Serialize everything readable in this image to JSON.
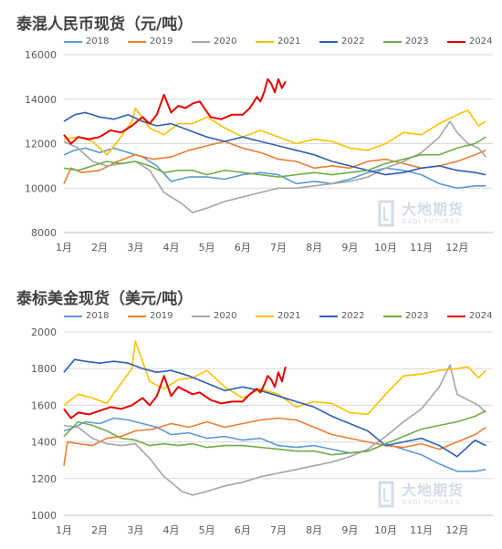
{
  "chart_data": [
    {
      "type": "line",
      "title": "泰混人民币现货（元/吨）",
      "categories": [
        "1月",
        "2月",
        "3月",
        "4月",
        "5月",
        "6月",
        "7月",
        "8月",
        "9月",
        "10月",
        "11月",
        "12月"
      ],
      "ylim": [
        8000,
        16000
      ],
      "yticks": [
        "8000",
        "10000",
        "12000",
        "14000",
        "16000"
      ],
      "grid": "horizontal",
      "legend": "top",
      "watermark": {
        "cn": "大地期货",
        "en": "DADI FUTURES"
      },
      "series": [
        {
          "name": "2018",
          "color": "#5b9bd5",
          "x": [
            0,
            0.3,
            0.6,
            1,
            1.4,
            1.8,
            2.2,
            2.6,
            3,
            3.5,
            4,
            4.5,
            5,
            5.5,
            6,
            6.5,
            7,
            7.5,
            8,
            8.5,
            9,
            9.5,
            10,
            10.5,
            11,
            11.5,
            11.8
          ],
          "values": [
            11500,
            11700,
            11800,
            11600,
            11800,
            11600,
            11400,
            11000,
            10300,
            10500,
            10500,
            10400,
            10600,
            10700,
            10600,
            10200,
            10300,
            10200,
            10400,
            10700,
            10900,
            10800,
            10600,
            10200,
            10000,
            10100,
            10100
          ]
        },
        {
          "name": "2019",
          "color": "#ed7d31",
          "x": [
            0,
            0.2,
            0.5,
            1,
            1.5,
            2,
            2.5,
            3,
            3.5,
            4,
            4.5,
            5,
            5.5,
            6,
            6.5,
            7,
            7.5,
            8,
            8.5,
            9,
            9.5,
            10,
            10.5,
            11,
            11.5,
            11.8
          ],
          "values": [
            10200,
            10900,
            10700,
            10800,
            11200,
            11500,
            11300,
            11400,
            11700,
            11900,
            12100,
            11800,
            11600,
            11300,
            11200,
            10900,
            11000,
            10900,
            11200,
            11300,
            11100,
            10900,
            11000,
            11200,
            11500,
            11700
          ]
        },
        {
          "name": "2020",
          "color": "#a5a5a5",
          "x": [
            0,
            0.4,
            0.8,
            1.2,
            1.6,
            2,
            2.4,
            2.8,
            3,
            3.3,
            3.6,
            4,
            4.5,
            5,
            5.5,
            6,
            6.5,
            7,
            7.5,
            8,
            8.5,
            9,
            9.5,
            10,
            10.5,
            10.8,
            11,
            11.3,
            11.6,
            11.8
          ],
          "values": [
            12100,
            11800,
            11200,
            11000,
            11100,
            11200,
            10800,
            9800,
            9600,
            9300,
            8900,
            9100,
            9400,
            9600,
            9800,
            10000,
            10000,
            10100,
            10200,
            10300,
            10500,
            10900,
            11200,
            11600,
            12300,
            13000,
            12500,
            12000,
            11800,
            11400
          ]
        },
        {
          "name": "2021",
          "color": "#ffc000",
          "x": [
            0,
            0.4,
            0.8,
            1.2,
            1.6,
            1.9,
            2,
            2.4,
            2.8,
            3.2,
            3.6,
            4,
            4.5,
            5,
            5.5,
            6,
            6.5,
            7,
            7.5,
            8,
            8.5,
            9,
            9.5,
            10,
            10.5,
            11,
            11.3,
            11.6,
            11.8
          ],
          "values": [
            12200,
            12300,
            12100,
            11500,
            12300,
            13000,
            13600,
            12700,
            12400,
            12900,
            12900,
            13200,
            12700,
            12300,
            12600,
            12300,
            12000,
            12200,
            12100,
            11800,
            11700,
            12000,
            12500,
            12400,
            12900,
            13300,
            13500,
            12800,
            13000
          ]
        },
        {
          "name": "2022",
          "color": "#2e5fb5",
          "x": [
            0,
            0.3,
            0.6,
            1,
            1.4,
            1.8,
            2.2,
            2.6,
            3,
            3.5,
            4,
            4.5,
            5,
            5.5,
            6,
            6.5,
            7,
            7.5,
            8,
            8.5,
            9,
            9.5,
            10,
            10.5,
            11,
            11.5,
            11.8
          ],
          "values": [
            13000,
            13300,
            13400,
            13200,
            13100,
            13300,
            13000,
            12800,
            12900,
            12600,
            12300,
            12100,
            12300,
            12100,
            11900,
            11700,
            11500,
            11200,
            11000,
            10800,
            10600,
            10700,
            10900,
            11000,
            10800,
            10700,
            10600
          ]
        },
        {
          "name": "2023",
          "color": "#70ad47",
          "x": [
            0,
            0.4,
            0.8,
            1.2,
            1.6,
            2,
            2.4,
            2.8,
            3.2,
            3.6,
            4,
            4.5,
            5,
            5.5,
            6,
            6.5,
            7,
            7.5,
            8,
            8.5,
            9,
            9.5,
            10,
            10.5,
            11,
            11.5,
            11.8
          ],
          "values": [
            10900,
            10800,
            11000,
            11200,
            11100,
            11200,
            11000,
            10700,
            10800,
            10800,
            10600,
            10800,
            10700,
            10600,
            10500,
            10600,
            10700,
            10600,
            10700,
            10800,
            11100,
            11300,
            11500,
            11500,
            11800,
            12000,
            12300
          ]
        },
        {
          "name": "2024",
          "color": "#e60000",
          "x": [
            0,
            0.2,
            0.4,
            0.7,
            1,
            1.3,
            1.6,
            1.9,
            2.2,
            2.4,
            2.6,
            2.8,
            3,
            3.2,
            3.4,
            3.6,
            3.8,
            4.1,
            4.4,
            4.7,
            5,
            5.2,
            5.4,
            5.5,
            5.6,
            5.7,
            5.8,
            5.9,
            6,
            6.1,
            6.2
          ],
          "values": [
            12400,
            12000,
            12300,
            12200,
            12300,
            12600,
            12500,
            12800,
            13200,
            12900,
            13300,
            14200,
            13400,
            13700,
            13600,
            13800,
            13900,
            13200,
            13100,
            13300,
            13300,
            13600,
            14100,
            13900,
            14300,
            14900,
            14700,
            14300,
            14900,
            14500,
            14800
          ]
        }
      ]
    },
    {
      "type": "line",
      "title": "泰标美金现货（美元/吨）",
      "categories": [
        "1月",
        "2月",
        "3月",
        "4月",
        "5月",
        "6月",
        "7月",
        "8月",
        "9月",
        "10月",
        "11月",
        "12月"
      ],
      "ylim": [
        1000,
        2000
      ],
      "yticks": [
        "1000",
        "1200",
        "1400",
        "1600",
        "1800",
        "2000"
      ],
      "grid": "horizontal",
      "legend": "top",
      "watermark": {
        "cn": "大地期货",
        "en": "DADI FUTURES"
      },
      "series": [
        {
          "name": "2018",
          "color": "#5b9bd5",
          "x": [
            0,
            0.3,
            0.6,
            1,
            1.4,
            1.8,
            2.2,
            2.6,
            3,
            3.5,
            4,
            4.5,
            5,
            5.5,
            6,
            6.5,
            7,
            7.5,
            8,
            8.5,
            9,
            9.5,
            10,
            10.5,
            11,
            11.5,
            11.8
          ],
          "values": [
            1460,
            1480,
            1510,
            1500,
            1530,
            1520,
            1500,
            1480,
            1440,
            1450,
            1420,
            1430,
            1410,
            1420,
            1380,
            1370,
            1380,
            1360,
            1340,
            1350,
            1390,
            1360,
            1330,
            1280,
            1240,
            1240,
            1250
          ]
        },
        {
          "name": "2019",
          "color": "#ed7d31",
          "x": [
            0,
            0.1,
            0.4,
            0.8,
            1.2,
            1.6,
            2,
            2.5,
            3,
            3.5,
            4,
            4.5,
            5,
            5.5,
            6,
            6.5,
            7,
            7.5,
            8,
            8.5,
            9,
            9.5,
            10,
            10.5,
            11,
            11.5,
            11.8
          ],
          "values": [
            1270,
            1400,
            1390,
            1380,
            1420,
            1430,
            1460,
            1470,
            1500,
            1480,
            1510,
            1480,
            1500,
            1520,
            1530,
            1520,
            1480,
            1440,
            1420,
            1400,
            1380,
            1370,
            1390,
            1360,
            1400,
            1440,
            1480
          ]
        },
        {
          "name": "2020",
          "color": "#a5a5a5",
          "x": [
            0,
            0.4,
            0.8,
            1.2,
            1.6,
            2,
            2.4,
            2.8,
            3,
            3.3,
            3.6,
            4,
            4.5,
            5,
            5.5,
            6,
            6.5,
            7,
            7.5,
            8,
            8.5,
            9,
            9.5,
            10,
            10.5,
            10.8,
            11,
            11.3,
            11.6,
            11.8
          ],
          "values": [
            1490,
            1480,
            1420,
            1390,
            1380,
            1390,
            1310,
            1210,
            1180,
            1130,
            1110,
            1130,
            1160,
            1180,
            1210,
            1230,
            1250,
            1270,
            1290,
            1320,
            1360,
            1430,
            1510,
            1580,
            1700,
            1820,
            1660,
            1630,
            1600,
            1560
          ]
        },
        {
          "name": "2021",
          "color": "#ffc000",
          "x": [
            0,
            0.4,
            0.8,
            1.2,
            1.6,
            1.9,
            2,
            2.4,
            2.8,
            3.2,
            3.6,
            4,
            4.5,
            5,
            5.5,
            6,
            6.5,
            7,
            7.5,
            8,
            8.5,
            9,
            9.5,
            10,
            10.5,
            11,
            11.3,
            11.6,
            11.8
          ],
          "values": [
            1600,
            1660,
            1640,
            1610,
            1720,
            1800,
            1950,
            1730,
            1690,
            1740,
            1750,
            1790,
            1700,
            1640,
            1690,
            1660,
            1590,
            1620,
            1610,
            1560,
            1550,
            1660,
            1760,
            1770,
            1790,
            1800,
            1810,
            1750,
            1790
          ]
        },
        {
          "name": "2022",
          "color": "#2e5fb5",
          "x": [
            0,
            0.3,
            0.6,
            1,
            1.4,
            1.8,
            2.2,
            2.6,
            3,
            3.5,
            4,
            4.5,
            5,
            5.5,
            6,
            6.5,
            7,
            7.5,
            8,
            8.5,
            9,
            9.5,
            10,
            10.5,
            11,
            11.5,
            11.8
          ],
          "values": [
            1780,
            1850,
            1840,
            1830,
            1840,
            1830,
            1800,
            1780,
            1790,
            1760,
            1720,
            1680,
            1700,
            1680,
            1650,
            1620,
            1590,
            1540,
            1500,
            1460,
            1380,
            1400,
            1420,
            1380,
            1320,
            1410,
            1380
          ]
        },
        {
          "name": "2023",
          "color": "#70ad47",
          "x": [
            0,
            0.4,
            0.8,
            1.2,
            1.6,
            2,
            2.4,
            2.8,
            3.2,
            3.6,
            4,
            4.5,
            5,
            5.5,
            6,
            6.5,
            7,
            7.5,
            8,
            8.5,
            9,
            9.5,
            10,
            10.5,
            11,
            11.5,
            11.8
          ],
          "values": [
            1430,
            1510,
            1490,
            1460,
            1420,
            1410,
            1380,
            1390,
            1380,
            1390,
            1370,
            1380,
            1380,
            1370,
            1360,
            1350,
            1350,
            1330,
            1340,
            1350,
            1390,
            1430,
            1470,
            1490,
            1510,
            1540,
            1570
          ]
        },
        {
          "name": "2024",
          "color": "#e60000",
          "x": [
            0,
            0.2,
            0.4,
            0.7,
            1,
            1.3,
            1.6,
            1.9,
            2.2,
            2.4,
            2.6,
            2.8,
            3,
            3.2,
            3.4,
            3.6,
            3.8,
            4.1,
            4.4,
            4.7,
            5,
            5.2,
            5.4,
            5.5,
            5.6,
            5.7,
            5.8,
            5.9,
            6,
            6.1,
            6.2
          ],
          "values": [
            1580,
            1530,
            1560,
            1550,
            1570,
            1590,
            1580,
            1600,
            1640,
            1600,
            1650,
            1760,
            1650,
            1700,
            1680,
            1660,
            1670,
            1630,
            1610,
            1620,
            1620,
            1660,
            1690,
            1670,
            1710,
            1760,
            1740,
            1700,
            1780,
            1730,
            1810
          ]
        }
      ]
    }
  ]
}
